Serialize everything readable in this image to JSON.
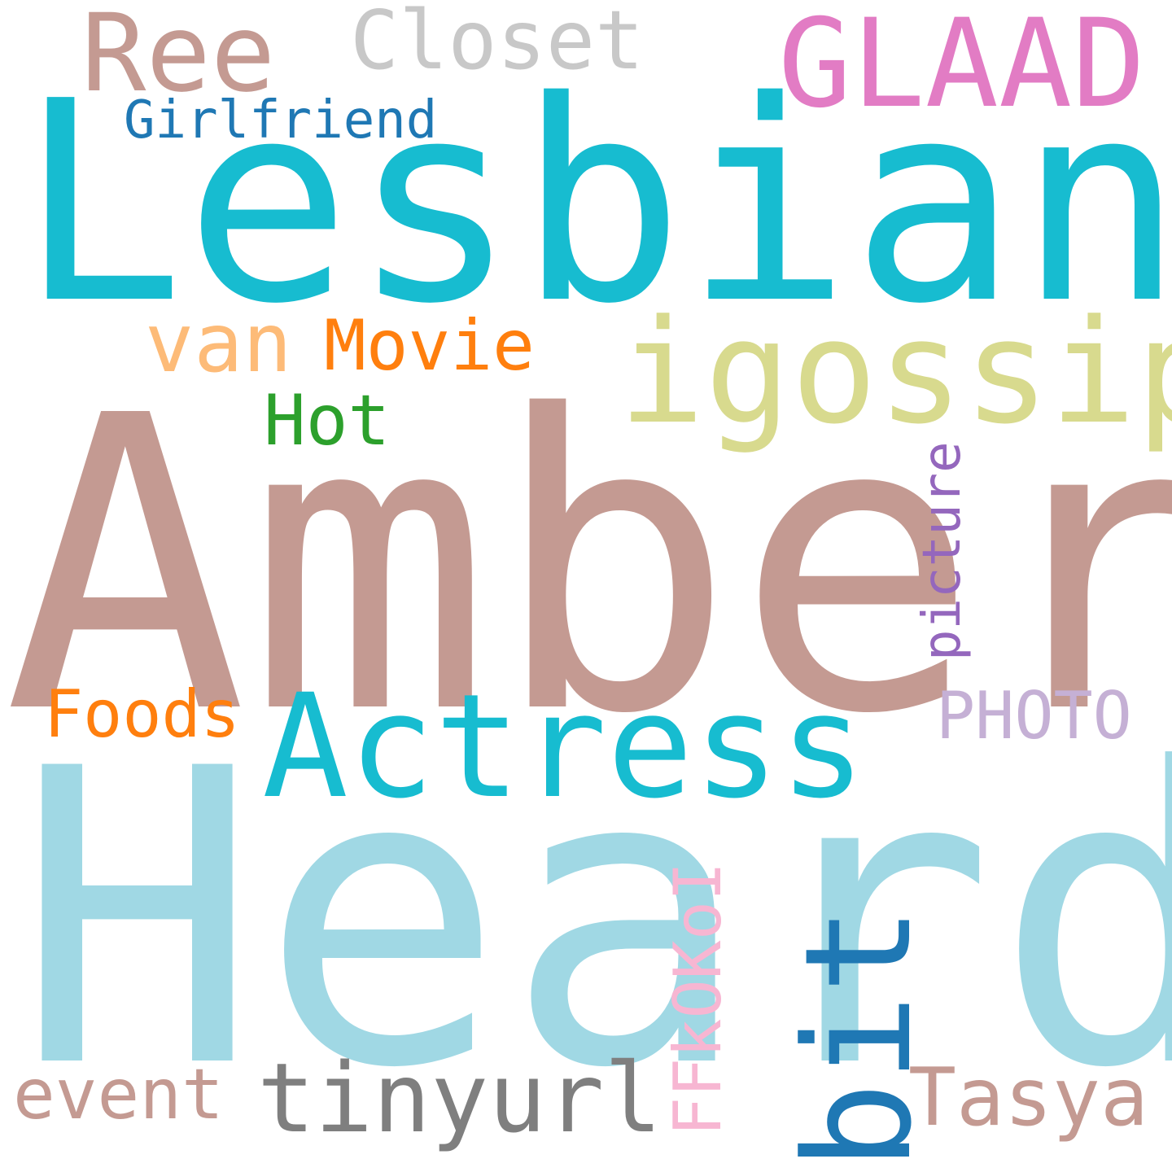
{
  "words": {
    "amber": {
      "text": "Amber",
      "color": "#c49a92"
    },
    "heard": {
      "text": "Heard",
      "color": "#a0d8e4"
    },
    "lesbian": {
      "text": "Lesbian",
      "color": "#17bcd0"
    },
    "actress": {
      "text": "Actress",
      "color": "#17bcd0"
    },
    "igossip": {
      "text": "igossip",
      "color": "#d8da8e"
    },
    "glaad": {
      "text": "GLAAD",
      "color": "#e27cc4"
    },
    "ree": {
      "text": "Ree",
      "color": "#c49a92"
    },
    "closet": {
      "text": "Closet",
      "color": "#c8c8c8"
    },
    "bit": {
      "text": "bit",
      "color": "#1f78b4"
    },
    "tinyurl": {
      "text": "tinyurl",
      "color": "#7f7f7f"
    },
    "tasya": {
      "text": "Tasya",
      "color": "#c49a92"
    },
    "van": {
      "text": "van",
      "color": "#fdbb78"
    },
    "movie": {
      "text": "Movie",
      "color": "#ff7f0e"
    },
    "hot": {
      "text": "Hot",
      "color": "#2ca02c"
    },
    "foods": {
      "text": "Foods",
      "color": "#ff7f0e"
    },
    "event": {
      "text": "event",
      "color": "#c49a92"
    },
    "photo": {
      "text": "PHOTO",
      "color": "#c5b0d5"
    },
    "girlfriend": {
      "text": "Girlfriend",
      "color": "#1f78b4"
    },
    "picture": {
      "text": "picture",
      "color": "#9467bd"
    },
    "ffkokoi": {
      "text": "FFkOKoI",
      "color": "#f7b6d2"
    }
  }
}
